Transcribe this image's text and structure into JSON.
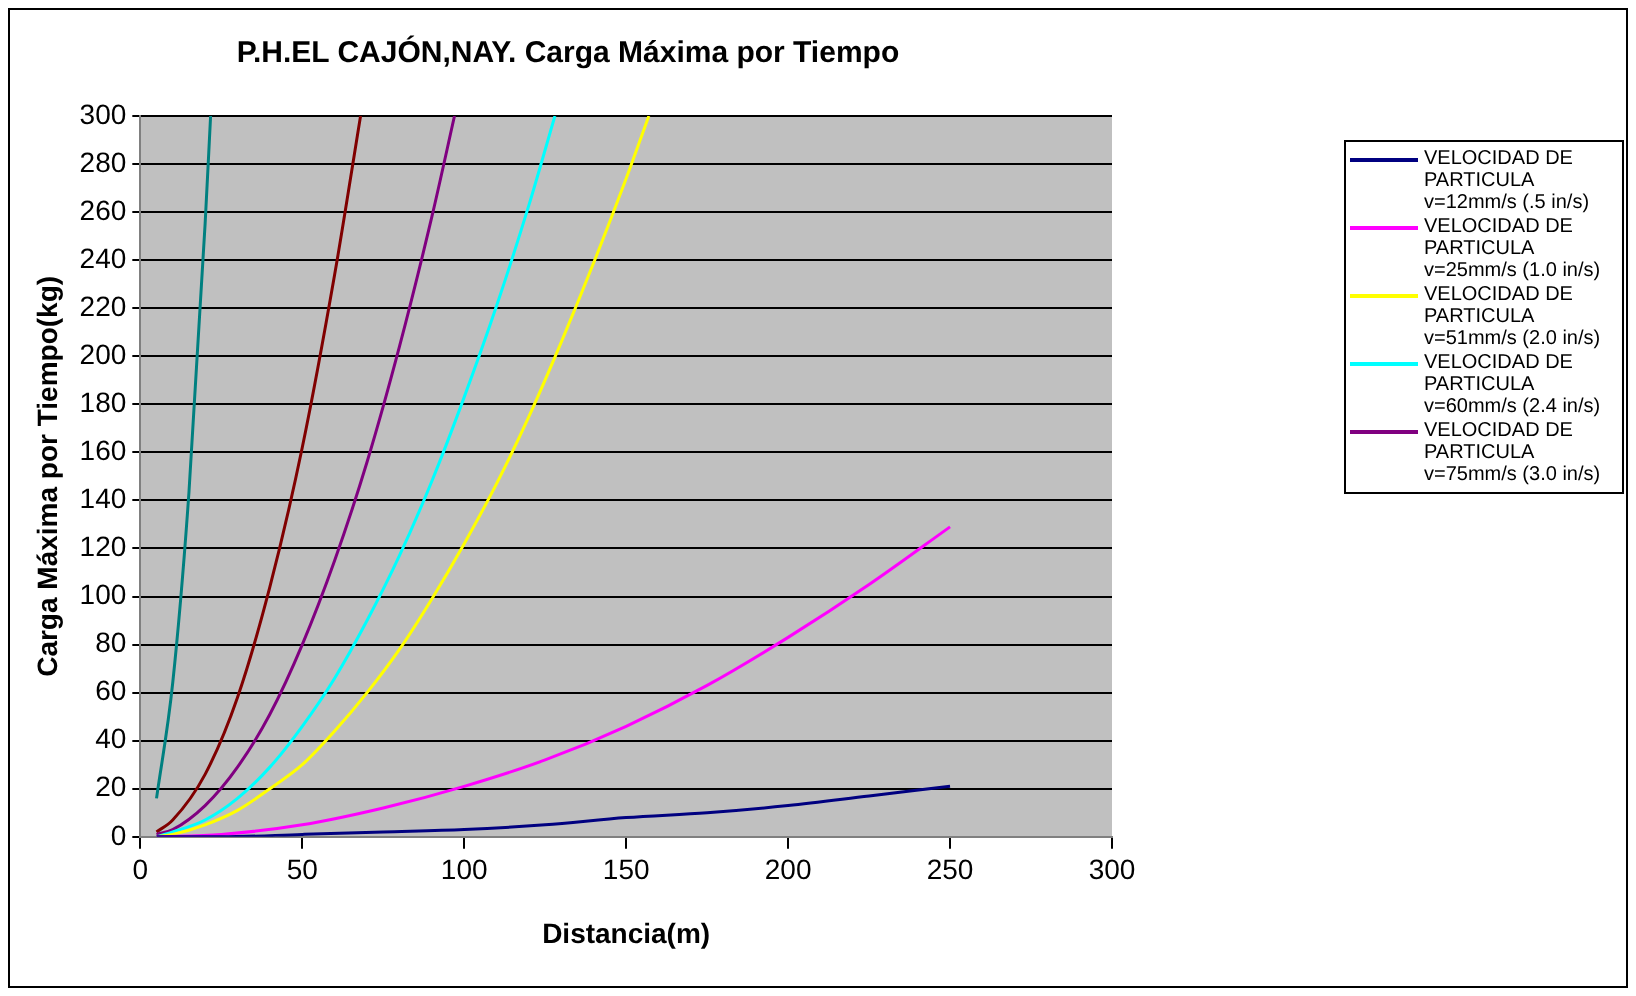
{
  "chart_data": {
    "type": "line",
    "title": "P.H.EL CAJÓN,NAY. Carga Máxima por Tiempo",
    "xlabel": "Distancia(m)",
    "ylabel": "Carga Máxima por Tiempo(kg)",
    "xlim": [
      0,
      300
    ],
    "xticks": [
      0,
      50,
      100,
      150,
      200,
      250,
      300
    ],
    "ylim": [
      0,
      300
    ],
    "yticks": [
      0,
      20,
      40,
      60,
      80,
      100,
      120,
      140,
      160,
      180,
      200,
      220,
      240,
      260,
      280,
      300
    ],
    "grid": "y",
    "legend": "right",
    "marker": "none",
    "line_style": "solid",
    "series": [
      {
        "name": "VELOCIDAD DE PARTICULA v=12mm/s (.5 in/s)",
        "color": "#000080",
        "x": [
          5,
          25,
          50,
          75,
          100,
          125,
          150,
          175,
          200,
          225,
          250
        ],
        "values": [
          0,
          0,
          1,
          2,
          3,
          5,
          8,
          10,
          13,
          17,
          21
        ]
      },
      {
        "name": "VELOCIDAD DE PARTICULA v=25mm/s (1.0 in/s)",
        "color": "#ff00ff",
        "x": [
          5,
          25,
          50,
          75,
          100,
          125,
          150,
          175,
          200,
          225,
          250
        ],
        "values": [
          0,
          1,
          5,
          12,
          21,
          32,
          46,
          63,
          83,
          105,
          129
        ]
      },
      {
        "name": "VELOCIDAD DE PARTICULA v=51mm/s (2.0 in/s)",
        "color": "#ffff00",
        "x": [
          5,
          10,
          20,
          30,
          40,
          50,
          60,
          70,
          80,
          90,
          100,
          110,
          120,
          130,
          140,
          150,
          157
        ],
        "values": [
          0,
          1,
          5,
          11,
          20,
          30,
          44,
          60,
          78,
          99,
          122,
          147,
          175,
          206,
          239,
          274,
          300
        ]
      },
      {
        "name": "VELOCIDAD DE PARTICULA v=60mm/s (2.4 in/s)",
        "color": "#00ffff",
        "x": [
          5,
          10,
          20,
          30,
          40,
          50,
          60,
          70,
          80,
          90,
          100,
          110,
          120,
          128
        ],
        "values": [
          0,
          2,
          7,
          16,
          29,
          46,
          66,
          90,
          117,
          148,
          183,
          221,
          263,
          300
        ]
      },
      {
        "name": "VELOCIDAD DE PARTICULA v=75mm/s (3.0 in/s)",
        "color": "#800080",
        "x": [
          5,
          10,
          20,
          30,
          40,
          50,
          60,
          70,
          80,
          90,
          97
        ],
        "values": [
          1,
          3,
          13,
          29,
          51,
          80,
          115,
          156,
          204,
          258,
          300
        ]
      },
      {
        "color": "#800000",
        "x": [
          5,
          10,
          20,
          30,
          40,
          50,
          60,
          68
        ],
        "values": [
          2,
          7,
          26,
          58,
          104,
          162,
          234,
          300
        ]
      },
      {
        "color": "#008080",
        "x": [
          5,
          10,
          15,
          20,
          21.7
        ],
        "values": [
          16,
          64,
          143,
          255,
          300
        ]
      }
    ]
  }
}
